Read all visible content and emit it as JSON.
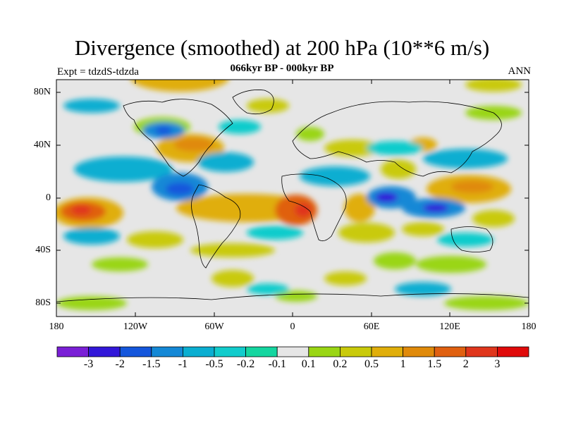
{
  "title": "Divergence (smoothed) at 200 hPa (10**6 m/s)",
  "subtitle": "066kyr BP - 000kyr BP",
  "left_label": "Expt = tdzdS-tdzda",
  "right_label": "ANN",
  "y_ticks": [
    "80N",
    "40N",
    "0",
    "40S",
    "80S"
  ],
  "x_ticks": [
    "180",
    "120W",
    "60W",
    "0",
    "60E",
    "120E",
    "180"
  ],
  "colorbar": {
    "labels": [
      "-3",
      "-2",
      "-1.5",
      "-1",
      "-0.5",
      "-0.2",
      "-0.1",
      "0.1",
      "0.2",
      "0.5",
      "1",
      "1.5",
      "2",
      "3"
    ],
    "colors": [
      "#7a1fd6",
      "#3217d9",
      "#1456dc",
      "#1488d6",
      "#0aaed1",
      "#11cccc",
      "#14d6a0",
      "#e6e6e6",
      "#9ad614",
      "#c9ca0a",
      "#e0ae0a",
      "#e08a0a",
      "#e06010",
      "#e0361c",
      "#e00a0a"
    ]
  },
  "colors": {
    "background": "#e6e6e6",
    "coast": "#000000"
  }
}
